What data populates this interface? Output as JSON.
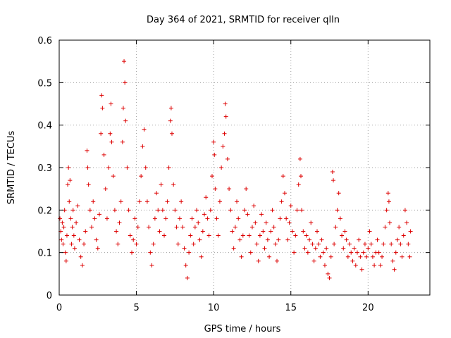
{
  "chart_data": {
    "type": "scatter",
    "title": "Day 364 of 2021, SRMTID for receiver qlln",
    "xlabel": "GPS time / hours",
    "ylabel": "SRMTID / TECUs",
    "xlim": [
      0,
      24
    ],
    "ylim": [
      0,
      0.6
    ],
    "xticks": [
      0,
      5,
      10,
      15,
      20
    ],
    "xtick_labels": [
      "0",
      "5",
      "10",
      "15",
      "20"
    ],
    "yticks": [
      0,
      0.1,
      0.2,
      0.3,
      0.4,
      0.5,
      0.6
    ],
    "ytick_labels": [
      "0",
      "0.1",
      "0.2",
      "0.3",
      "0.4",
      "0.5",
      "0.6"
    ],
    "grid": true,
    "marker": "plus",
    "color": "#dd0000",
    "series": [
      {
        "name": "SRMTID",
        "points": [
          [
            0.05,
            0.18
          ],
          [
            0.1,
            0.15
          ],
          [
            0.15,
            0.13
          ],
          [
            0.2,
            0.17
          ],
          [
            0.25,
            0.12
          ],
          [
            0.3,
            0.16
          ],
          [
            0.35,
            0.2
          ],
          [
            0.4,
            0.1
          ],
          [
            0.45,
            0.08
          ],
          [
            0.5,
            0.14
          ],
          [
            0.55,
            0.26
          ],
          [
            0.6,
            0.3
          ],
          [
            0.65,
            0.22
          ],
          [
            0.7,
            0.27
          ],
          [
            0.75,
            0.18
          ],
          [
            0.8,
            0.12
          ],
          [
            0.85,
            0.16
          ],
          [
            0.9,
            0.2
          ],
          [
            0.95,
            0.14
          ],
          [
            1.0,
            0.11
          ],
          [
            1.1,
            0.17
          ],
          [
            1.2,
            0.21
          ],
          [
            1.3,
            0.13
          ],
          [
            1.4,
            0.09
          ],
          [
            1.5,
            0.07
          ],
          [
            1.6,
            0.12
          ],
          [
            1.7,
            0.15
          ],
          [
            1.8,
            0.34
          ],
          [
            1.85,
            0.3
          ],
          [
            1.9,
            0.26
          ],
          [
            2.0,
            0.2
          ],
          [
            2.1,
            0.16
          ],
          [
            2.2,
            0.22
          ],
          [
            2.3,
            0.18
          ],
          [
            2.4,
            0.13
          ],
          [
            2.5,
            0.11
          ],
          [
            2.6,
            0.19
          ],
          [
            2.7,
            0.38
          ],
          [
            2.75,
            0.47
          ],
          [
            2.8,
            0.44
          ],
          [
            2.9,
            0.33
          ],
          [
            3.0,
            0.25
          ],
          [
            3.1,
            0.18
          ],
          [
            3.2,
            0.3
          ],
          [
            3.3,
            0.38
          ],
          [
            3.35,
            0.45
          ],
          [
            3.4,
            0.36
          ],
          [
            3.5,
            0.28
          ],
          [
            3.6,
            0.2
          ],
          [
            3.7,
            0.15
          ],
          [
            3.8,
            0.12
          ],
          [
            3.9,
            0.17
          ],
          [
            4.0,
            0.22
          ],
          [
            4.1,
            0.36
          ],
          [
            4.15,
            0.44
          ],
          [
            4.2,
            0.55
          ],
          [
            4.25,
            0.5
          ],
          [
            4.3,
            0.41
          ],
          [
            4.4,
            0.3
          ],
          [
            4.5,
            0.2
          ],
          [
            4.6,
            0.14
          ],
          [
            4.7,
            0.1
          ],
          [
            4.8,
            0.13
          ],
          [
            4.9,
            0.18
          ],
          [
            5.0,
            0.12
          ],
          [
            5.1,
            0.16
          ],
          [
            5.2,
            0.22
          ],
          [
            5.3,
            0.28
          ],
          [
            5.4,
            0.35
          ],
          [
            5.5,
            0.39
          ],
          [
            5.6,
            0.3
          ],
          [
            5.7,
            0.22
          ],
          [
            5.8,
            0.16
          ],
          [
            5.9,
            0.1
          ],
          [
            6.0,
            0.07
          ],
          [
            6.1,
            0.12
          ],
          [
            6.2,
            0.18
          ],
          [
            6.3,
            0.24
          ],
          [
            6.4,
            0.2
          ],
          [
            6.5,
            0.15
          ],
          [
            6.6,
            0.26
          ],
          [
            6.7,
            0.2
          ],
          [
            6.8,
            0.14
          ],
          [
            6.9,
            0.18
          ],
          [
            7.0,
            0.22
          ],
          [
            7.1,
            0.3
          ],
          [
            7.2,
            0.41
          ],
          [
            7.25,
            0.44
          ],
          [
            7.3,
            0.38
          ],
          [
            7.4,
            0.26
          ],
          [
            7.5,
            0.2
          ],
          [
            7.6,
            0.16
          ],
          [
            7.7,
            0.12
          ],
          [
            7.8,
            0.18
          ],
          [
            7.9,
            0.22
          ],
          [
            8.0,
            0.16
          ],
          [
            8.1,
            0.11
          ],
          [
            8.2,
            0.07
          ],
          [
            8.3,
            0.04
          ],
          [
            8.4,
            0.1
          ],
          [
            8.5,
            0.14
          ],
          [
            8.6,
            0.18
          ],
          [
            8.7,
            0.12
          ],
          [
            8.8,
            0.16
          ],
          [
            8.9,
            0.2
          ],
          [
            9.0,
            0.17
          ],
          [
            9.1,
            0.13
          ],
          [
            9.2,
            0.09
          ],
          [
            9.3,
            0.15
          ],
          [
            9.4,
            0.19
          ],
          [
            9.5,
            0.23
          ],
          [
            9.6,
            0.18
          ],
          [
            9.7,
            0.14
          ],
          [
            9.8,
            0.2
          ],
          [
            9.9,
            0.28
          ],
          [
            10.0,
            0.36
          ],
          [
            10.05,
            0.33
          ],
          [
            10.1,
            0.25
          ],
          [
            10.2,
            0.18
          ],
          [
            10.3,
            0.14
          ],
          [
            10.4,
            0.22
          ],
          [
            10.5,
            0.3
          ],
          [
            10.6,
            0.35
          ],
          [
            10.7,
            0.38
          ],
          [
            10.75,
            0.45
          ],
          [
            10.8,
            0.42
          ],
          [
            10.9,
            0.32
          ],
          [
            11.0,
            0.25
          ],
          [
            11.1,
            0.2
          ],
          [
            11.2,
            0.15
          ],
          [
            11.3,
            0.11
          ],
          [
            11.4,
            0.16
          ],
          [
            11.5,
            0.22
          ],
          [
            11.6,
            0.18
          ],
          [
            11.7,
            0.13
          ],
          [
            11.8,
            0.09
          ],
          [
            11.9,
            0.14
          ],
          [
            12.0,
            0.2
          ],
          [
            12.1,
            0.25
          ],
          [
            12.2,
            0.19
          ],
          [
            12.3,
            0.14
          ],
          [
            12.4,
            0.1
          ],
          [
            12.5,
            0.16
          ],
          [
            12.6,
            0.21
          ],
          [
            12.7,
            0.17
          ],
          [
            12.8,
            0.12
          ],
          [
            12.9,
            0.08
          ],
          [
            13.0,
            0.14
          ],
          [
            13.1,
            0.19
          ],
          [
            13.2,
            0.15
          ],
          [
            13.3,
            0.11
          ],
          [
            13.4,
            0.17
          ],
          [
            13.5,
            0.13
          ],
          [
            13.6,
            0.09
          ],
          [
            13.7,
            0.15
          ],
          [
            13.8,
            0.2
          ],
          [
            13.9,
            0.16
          ],
          [
            14.0,
            0.12
          ],
          [
            14.1,
            0.08
          ],
          [
            14.2,
            0.13
          ],
          [
            14.3,
            0.18
          ],
          [
            14.4,
            0.22
          ],
          [
            14.5,
            0.28
          ],
          [
            14.6,
            0.24
          ],
          [
            14.7,
            0.18
          ],
          [
            14.8,
            0.13
          ],
          [
            14.9,
            0.17
          ],
          [
            15.0,
            0.21
          ],
          [
            15.1,
            0.15
          ],
          [
            15.2,
            0.1
          ],
          [
            15.3,
            0.14
          ],
          [
            15.4,
            0.2
          ],
          [
            15.5,
            0.26
          ],
          [
            15.6,
            0.32
          ],
          [
            15.65,
            0.28
          ],
          [
            15.7,
            0.2
          ],
          [
            15.8,
            0.15
          ],
          [
            15.9,
            0.11
          ],
          [
            16.0,
            0.14
          ],
          [
            16.1,
            0.1
          ],
          [
            16.2,
            0.13
          ],
          [
            16.3,
            0.17
          ],
          [
            16.4,
            0.12
          ],
          [
            16.5,
            0.08
          ],
          [
            16.6,
            0.11
          ],
          [
            16.7,
            0.15
          ],
          [
            16.8,
            0.12
          ],
          [
            16.9,
            0.09
          ],
          [
            17.0,
            0.13
          ],
          [
            17.1,
            0.1
          ],
          [
            17.2,
            0.07
          ],
          [
            17.3,
            0.11
          ],
          [
            17.4,
            0.05
          ],
          [
            17.5,
            0.04
          ],
          [
            17.6,
            0.09
          ],
          [
            17.7,
            0.29
          ],
          [
            17.75,
            0.27
          ],
          [
            17.8,
            0.12
          ],
          [
            17.9,
            0.16
          ],
          [
            18.0,
            0.2
          ],
          [
            18.1,
            0.24
          ],
          [
            18.2,
            0.18
          ],
          [
            18.3,
            0.14
          ],
          [
            18.4,
            0.11
          ],
          [
            18.5,
            0.15
          ],
          [
            18.6,
            0.13
          ],
          [
            18.7,
            0.09
          ],
          [
            18.8,
            0.12
          ],
          [
            18.9,
            0.1
          ],
          [
            19.0,
            0.08
          ],
          [
            19.1,
            0.11
          ],
          [
            19.2,
            0.07
          ],
          [
            19.3,
            0.1
          ],
          [
            19.4,
            0.13
          ],
          [
            19.5,
            0.09
          ],
          [
            19.6,
            0.06
          ],
          [
            19.7,
            0.1
          ],
          [
            19.8,
            0.12
          ],
          [
            19.9,
            0.09
          ],
          [
            20.0,
            0.11
          ],
          [
            20.1,
            0.15
          ],
          [
            20.2,
            0.12
          ],
          [
            20.3,
            0.09
          ],
          [
            20.4,
            0.07
          ],
          [
            20.5,
            0.1
          ],
          [
            20.6,
            0.13
          ],
          [
            20.7,
            0.1
          ],
          [
            20.8,
            0.07
          ],
          [
            20.9,
            0.09
          ],
          [
            21.0,
            0.12
          ],
          [
            21.1,
            0.16
          ],
          [
            21.2,
            0.2
          ],
          [
            21.3,
            0.24
          ],
          [
            21.35,
            0.22
          ],
          [
            21.4,
            0.17
          ],
          [
            21.5,
            0.12
          ],
          [
            21.6,
            0.08
          ],
          [
            21.7,
            0.06
          ],
          [
            21.8,
            0.1
          ],
          [
            21.9,
            0.13
          ],
          [
            22.0,
            0.16
          ],
          [
            22.1,
            0.12
          ],
          [
            22.2,
            0.09
          ],
          [
            22.3,
            0.14
          ],
          [
            22.4,
            0.2
          ],
          [
            22.5,
            0.17
          ],
          [
            22.6,
            0.12
          ],
          [
            22.7,
            0.09
          ],
          [
            22.75,
            0.15
          ]
        ]
      }
    ]
  }
}
